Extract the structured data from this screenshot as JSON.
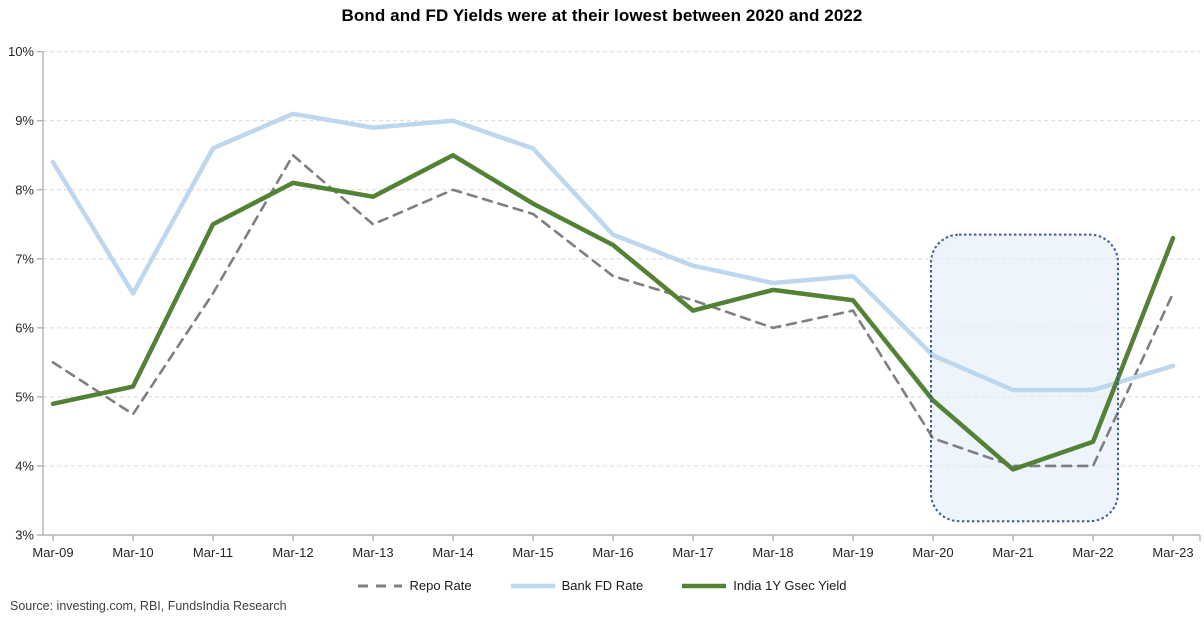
{
  "title": "Bond and FD Yields were at their lowest between 2020 and 2022",
  "source_note": "Source: investing.com, RBI, FundsIndia Research",
  "colors": {
    "axis": "#a6a6a6",
    "gridline": "#d9d9d9",
    "tick_label": "#262626",
    "title": "#000000",
    "source": "#404040",
    "highlight_fill": "#e3edf8",
    "highlight_border": "#35599b"
  },
  "chart_data": {
    "type": "line",
    "title": "Bond and FD Yields were at their lowest between 2020 and 2022",
    "xlabel": "",
    "ylabel": "",
    "categories": [
      "Mar-09",
      "Mar-10",
      "Mar-11",
      "Mar-12",
      "Mar-13",
      "Mar-14",
      "Mar-15",
      "Mar-16",
      "Mar-17",
      "Mar-18",
      "Mar-19",
      "Mar-20",
      "Mar-21",
      "Mar-22",
      "Mar-23"
    ],
    "series": [
      {
        "name": "Repo Rate",
        "color": "#7f7f7f",
        "line_style": "dashed",
        "values": [
          5.5,
          4.75,
          6.5,
          8.5,
          7.5,
          8.0,
          7.65,
          6.75,
          6.4,
          6.0,
          6.25,
          4.4,
          4.0,
          4.0,
          6.5
        ]
      },
      {
        "name": "Bank FD Rate",
        "color": "#bdd7ee",
        "line_style": "solid",
        "values": [
          8.4,
          6.5,
          8.6,
          9.1,
          8.9,
          9.0,
          8.6,
          7.35,
          6.9,
          6.65,
          6.75,
          5.6,
          5.1,
          5.1,
          5.45
        ]
      },
      {
        "name": "India 1Y Gsec Yield",
        "color": "#538135",
        "line_style": "solid",
        "values": [
          4.9,
          5.15,
          7.5,
          8.1,
          7.9,
          8.5,
          7.8,
          7.2,
          6.25,
          6.55,
          6.4,
          4.95,
          3.95,
          4.35,
          7.3
        ]
      }
    ],
    "ylim": [
      3,
      10
    ],
    "yticks": [
      3,
      4,
      5,
      6,
      7,
      8,
      9,
      10
    ],
    "ytick_suffix": "%",
    "grid": "horizontal-dashed",
    "legend_position": "bottom",
    "highlight": {
      "from": "Mar-20",
      "to": "Mar-22",
      "y_top": 7.35,
      "y_bottom": 3.2
    }
  }
}
